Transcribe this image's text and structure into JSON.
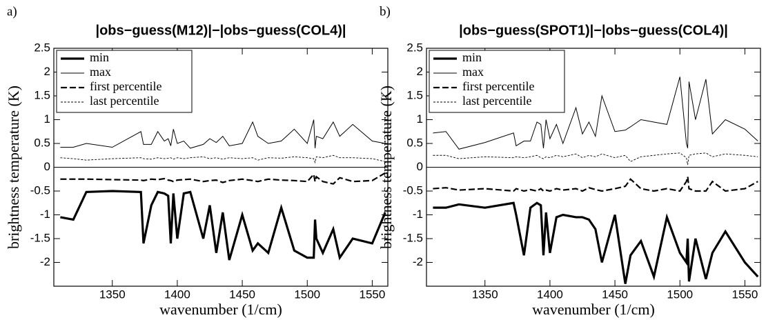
{
  "chart_data": [
    {
      "type": "line",
      "panel_label": "a)",
      "title": "|obs−guess(M12)|−|obs−guess(COL4)|",
      "x_label": "wavenumber (1/cm)",
      "y_label": "brightness temperature (K)",
      "xlim": [
        1305,
        1562
      ],
      "ylim": [
        -2.5,
        2.5
      ],
      "xticks": [
        1350,
        1400,
        1450,
        1500,
        1550
      ],
      "yticks": [
        -2,
        -1.5,
        -1,
        -0.5,
        0,
        0.5,
        1,
        1.5,
        2,
        2.5
      ],
      "zero_line": true,
      "legend": "upper left",
      "x": [
        1310,
        1320,
        1330,
        1350,
        1372,
        1374,
        1380,
        1385,
        1390,
        1393,
        1395,
        1397,
        1400,
        1405,
        1410,
        1420,
        1425,
        1430,
        1435,
        1440,
        1450,
        1458,
        1462,
        1470,
        1480,
        1490,
        1500,
        1505,
        1506,
        1507,
        1512,
        1520,
        1525,
        1535,
        1550,
        1560
      ],
      "series": [
        {
          "name": "min",
          "color": "#000000",
          "line_style": "bold",
          "values": [
            -1.05,
            -1.1,
            -0.52,
            -0.5,
            -0.52,
            -1.6,
            -0.8,
            -0.52,
            -0.55,
            -0.6,
            -1.6,
            -0.55,
            -1.5,
            -0.55,
            -0.52,
            -1.5,
            -0.8,
            -1.8,
            -0.95,
            -1.95,
            -1.0,
            -1.75,
            -1.6,
            -1.8,
            -0.85,
            -1.75,
            -1.9,
            -1.9,
            -1.1,
            -1.5,
            -1.8,
            -1.3,
            -1.9,
            -1.5,
            -1.6,
            -0.95
          ]
        },
        {
          "name": "max",
          "color": "#000000",
          "line_style": "solid",
          "values": [
            0.42,
            0.42,
            0.5,
            0.42,
            0.75,
            0.48,
            0.48,
            0.75,
            0.55,
            0.6,
            0.45,
            0.8,
            0.5,
            0.55,
            0.4,
            0.48,
            0.6,
            0.52,
            0.65,
            0.45,
            0.5,
            0.95,
            0.65,
            0.5,
            0.55,
            0.8,
            0.5,
            1.0,
            0.4,
            0.65,
            0.6,
            0.95,
            0.65,
            0.9,
            0.55,
            0.5
          ]
        },
        {
          "name": "first percentile",
          "color": "#000000",
          "line_style": "dashed",
          "values": [
            -0.25,
            -0.25,
            -0.25,
            -0.26,
            -0.27,
            -0.28,
            -0.25,
            -0.26,
            -0.24,
            -0.27,
            -0.28,
            -0.3,
            -0.27,
            -0.26,
            -0.25,
            -0.3,
            -0.28,
            -0.27,
            -0.32,
            -0.28,
            -0.25,
            -0.28,
            -0.3,
            -0.25,
            -0.27,
            -0.28,
            -0.3,
            -0.15,
            -0.3,
            -0.2,
            -0.3,
            -0.35,
            -0.22,
            -0.3,
            -0.28,
            -0.12
          ]
        },
        {
          "name": "last percentile",
          "color": "#000000",
          "line_style": "dotted",
          "values": [
            0.2,
            0.18,
            0.15,
            0.18,
            0.2,
            0.18,
            0.17,
            0.2,
            0.18,
            0.19,
            0.2,
            0.17,
            0.2,
            0.18,
            0.2,
            0.22,
            0.18,
            0.2,
            0.17,
            0.2,
            0.18,
            0.2,
            0.15,
            0.2,
            0.19,
            0.22,
            0.2,
            0.18,
            0.1,
            0.22,
            0.2,
            0.25,
            0.2,
            0.2,
            0.18,
            0.12
          ]
        }
      ]
    },
    {
      "type": "line",
      "panel_label": "b)",
      "title": "|obs−guess(SPOT1)|−|obs−guess(COL4)|",
      "x_label": "wavenumber (1/cm)",
      "y_label": "brightness temperature (K)",
      "xlim": [
        1305,
        1562
      ],
      "ylim": [
        -2.5,
        2.5
      ],
      "xticks": [
        1350,
        1400,
        1450,
        1500,
        1550
      ],
      "yticks": [
        -2,
        -1.5,
        -1,
        -0.5,
        0,
        0.5,
        1,
        1.5,
        2,
        2.5
      ],
      "zero_line": true,
      "legend": "upper left",
      "x": [
        1310,
        1320,
        1330,
        1350,
        1372,
        1374,
        1380,
        1385,
        1390,
        1393,
        1395,
        1397,
        1400,
        1405,
        1410,
        1420,
        1425,
        1430,
        1435,
        1440,
        1450,
        1458,
        1462,
        1470,
        1480,
        1490,
        1500,
        1505,
        1506,
        1507,
        1512,
        1520,
        1525,
        1535,
        1550,
        1560
      ],
      "series": [
        {
          "name": "min",
          "color": "#000000",
          "line_style": "bold",
          "values": [
            -0.85,
            -0.85,
            -0.78,
            -0.85,
            -0.75,
            -1.0,
            -1.85,
            -0.85,
            -0.75,
            -0.8,
            -1.85,
            -0.95,
            -1.8,
            -1.05,
            -1.0,
            -1.05,
            -1.05,
            -1.1,
            -1.3,
            -2.0,
            -1.0,
            -2.45,
            -1.85,
            -1.55,
            -2.3,
            -1.05,
            -1.8,
            -2.0,
            -1.5,
            -2.4,
            -1.5,
            -2.35,
            -1.8,
            -1.35,
            -2.0,
            -2.3
          ]
        },
        {
          "name": "max",
          "color": "#000000",
          "line_style": "solid",
          "values": [
            0.72,
            0.75,
            0.38,
            0.52,
            0.72,
            0.45,
            0.55,
            0.55,
            0.95,
            0.9,
            0.4,
            1.0,
            0.6,
            0.9,
            0.5,
            1.25,
            0.7,
            0.95,
            0.65,
            1.5,
            0.75,
            0.78,
            0.85,
            1.0,
            0.95,
            0.9,
            1.9,
            0.5,
            0.4,
            1.8,
            1.0,
            1.85,
            0.7,
            1.0,
            0.8,
            0.55
          ]
        },
        {
          "name": "first percentile",
          "color": "#000000",
          "line_style": "dashed",
          "values": [
            -0.45,
            -0.43,
            -0.48,
            -0.45,
            -0.5,
            -0.45,
            -0.5,
            -0.47,
            -0.5,
            -0.45,
            -0.5,
            -0.48,
            -0.5,
            -0.45,
            -0.48,
            -0.45,
            -0.5,
            -0.43,
            -0.47,
            -0.5,
            -0.45,
            -0.4,
            -0.25,
            -0.45,
            -0.5,
            -0.45,
            -0.5,
            -0.3,
            -0.2,
            -0.45,
            -0.5,
            -0.5,
            -0.3,
            -0.5,
            -0.45,
            -0.3
          ]
        },
        {
          "name": "last percentile",
          "color": "#000000",
          "line_style": "dotted",
          "values": [
            0.25,
            0.25,
            0.18,
            0.22,
            0.2,
            0.22,
            0.2,
            0.22,
            0.25,
            0.2,
            0.18,
            0.22,
            0.2,
            0.25,
            0.22,
            0.28,
            0.2,
            0.25,
            0.22,
            0.28,
            0.2,
            0.25,
            0.12,
            0.22,
            0.25,
            0.28,
            0.3,
            0.2,
            0.05,
            0.25,
            0.28,
            0.3,
            0.22,
            0.28,
            0.25,
            0.22
          ]
        }
      ]
    }
  ]
}
